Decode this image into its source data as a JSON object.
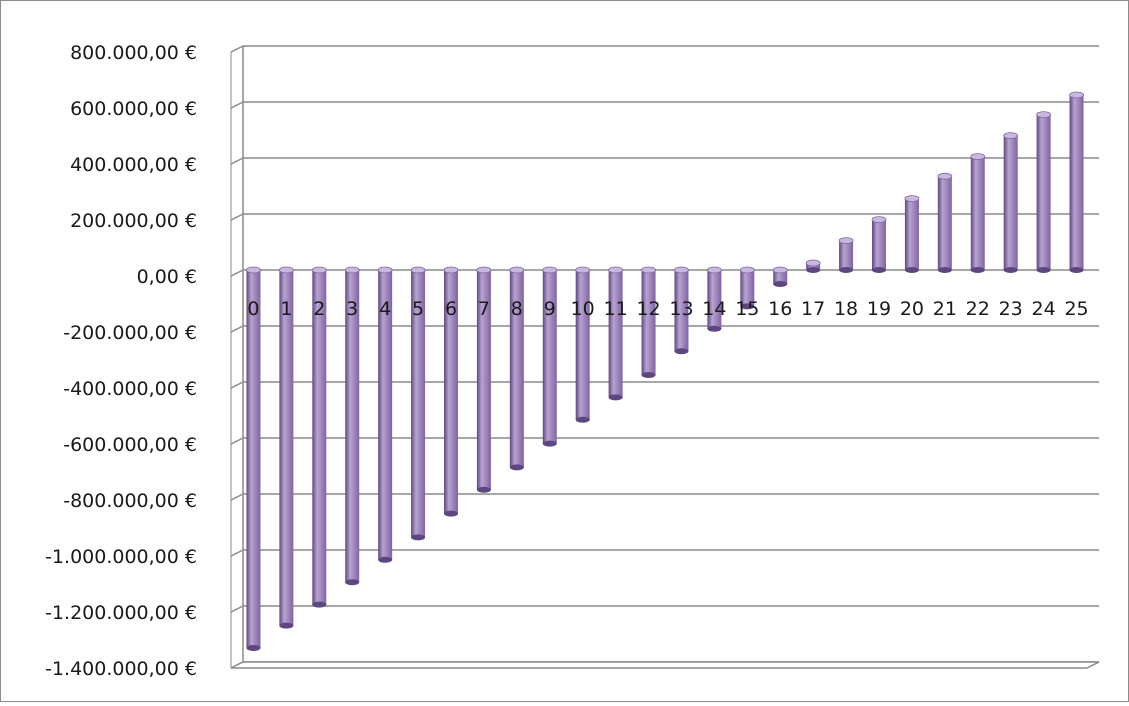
{
  "chart_data": {
    "type": "bar",
    "style": "3d-cylinder",
    "categories": [
      "0",
      "1",
      "2",
      "3",
      "4",
      "5",
      "6",
      "7",
      "8",
      "9",
      "10",
      "11",
      "12",
      "13",
      "14",
      "15",
      "16",
      "17",
      "18",
      "19",
      "20",
      "21",
      "22",
      "23",
      "24",
      "25"
    ],
    "series": [
      {
        "values": [
          -1350000,
          -1270000,
          -1195000,
          -1115000,
          -1035000,
          -955000,
          -870000,
          -785000,
          -705000,
          -620000,
          -535000,
          -455000,
          -375000,
          -290000,
          -210000,
          -130000,
          -50000,
          25000,
          105000,
          180000,
          255000,
          335000,
          405000,
          480000,
          555000,
          625000
        ]
      }
    ],
    "ylim": [
      -1400000,
      800000
    ],
    "yticks": [
      {
        "value": 800000,
        "label": "800.000,00 €"
      },
      {
        "value": 600000,
        "label": "600.000,00 €"
      },
      {
        "value": 400000,
        "label": "400.000,00 €"
      },
      {
        "value": 200000,
        "label": "200.000,00 €"
      },
      {
        "value": 0,
        "label": "0,00 €"
      },
      {
        "value": -200000,
        "label": "-200.000,00 €"
      },
      {
        "value": -400000,
        "label": "-400.000,00 €"
      },
      {
        "value": -600000,
        "label": "-600.000,00 €"
      },
      {
        "value": -800000,
        "label": "-800.000,00 €"
      },
      {
        "value": -1000000,
        "label": "-1.000.000,00 €"
      },
      {
        "value": -1200000,
        "label": "-1.200.000,00 €"
      },
      {
        "value": -1400000,
        "label": "-1.400.000,00 €"
      }
    ],
    "title": "",
    "xlabel": "",
    "ylabel": "",
    "grid": true,
    "legend": "none",
    "colors": {
      "bar_side": "#8064a2",
      "bar_dark": "#5e4780",
      "bar_light": "#b7a3d1",
      "bar_top": "#c9b8de",
      "gridline": "#8a8a8a",
      "axis": "#8a8a8a"
    }
  }
}
